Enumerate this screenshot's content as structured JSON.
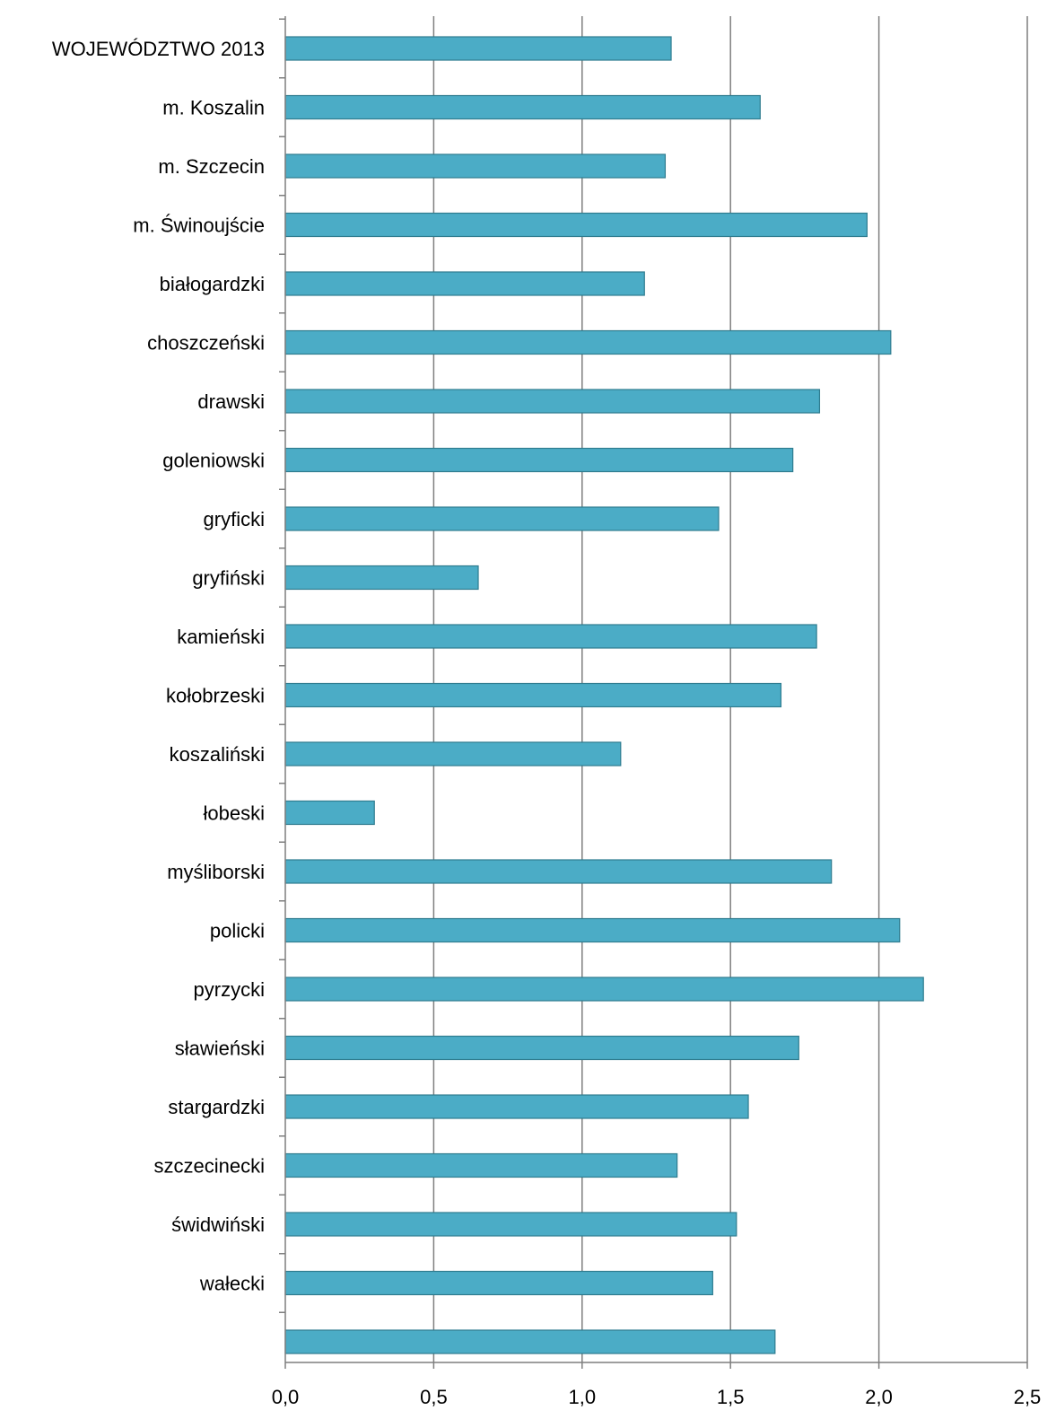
{
  "chart_data": {
    "type": "bar",
    "orientation": "horizontal",
    "categories": [
      "WOJEWÓDZTWO 2013",
      "m. Koszalin",
      "m. Szczecin",
      "m. Świnoujście",
      "białogardzki",
      "choszczeński",
      "drawski",
      "goleniowski",
      "gryficki",
      "gryfiński",
      "kamieński",
      "kołobrzeski",
      "koszaliński",
      "łobeski",
      "myśliborski",
      "policki",
      "pyrzycki",
      "sławieński",
      "stargardzki",
      "szczecinecki",
      "świdwiński",
      "wałecki",
      ""
    ],
    "values": [
      1.3,
      1.6,
      1.28,
      1.96,
      1.21,
      2.04,
      1.8,
      1.71,
      1.46,
      0.65,
      1.79,
      1.67,
      1.13,
      0.3,
      1.84,
      2.07,
      2.15,
      1.73,
      1.56,
      1.32,
      1.52,
      1.44,
      1.65
    ],
    "xlim": [
      0,
      2.5
    ],
    "ticks": [
      "0,0",
      "0,5",
      "1,0",
      "1,5",
      "2,0",
      "2,5"
    ],
    "tick_values": [
      0,
      0.5,
      1.0,
      1.5,
      2.0,
      2.5
    ],
    "grid": "vertical",
    "title": "",
    "xlabel": "",
    "ylabel": "",
    "colors": {
      "bar_fill": "#4bacc6",
      "bar_stroke": "#2f7c8f",
      "grid": "#7f7f7f",
      "axis": "#7f7f7f"
    }
  }
}
